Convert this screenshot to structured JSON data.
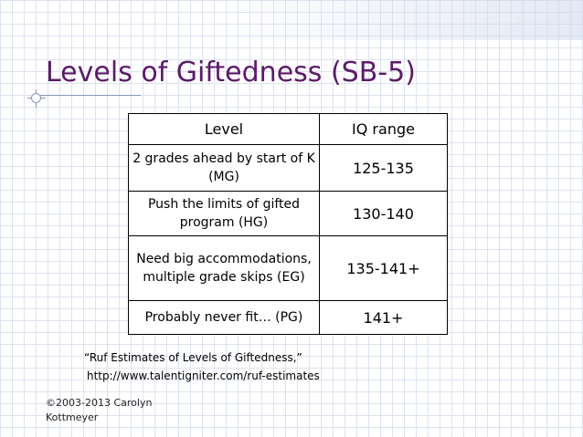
{
  "slide": {
    "title": "Levels of Giftedness (SB-5)"
  },
  "table": {
    "headers": [
      "Level",
      "IQ range"
    ],
    "rows": [
      {
        "level": "2 grades ahead by start of K (MG)",
        "iq": "125-135"
      },
      {
        "level": "Push the limits of gifted program (HG)",
        "iq": "130-140"
      },
      {
        "level": "Need big accommodations, multiple grade skips (EG)",
        "iq": "135-141+"
      },
      {
        "level": "Probably never fit… (PG)",
        "iq": "141+"
      }
    ]
  },
  "citation": {
    "title": "“Ruf Estimates of Levels of Giftedness,”",
    "url": "http://www.talentigniter.com/ruf-estimates"
  },
  "footer": {
    "copyright": "©2003-2013 Carolyn Kottmeyer"
  }
}
